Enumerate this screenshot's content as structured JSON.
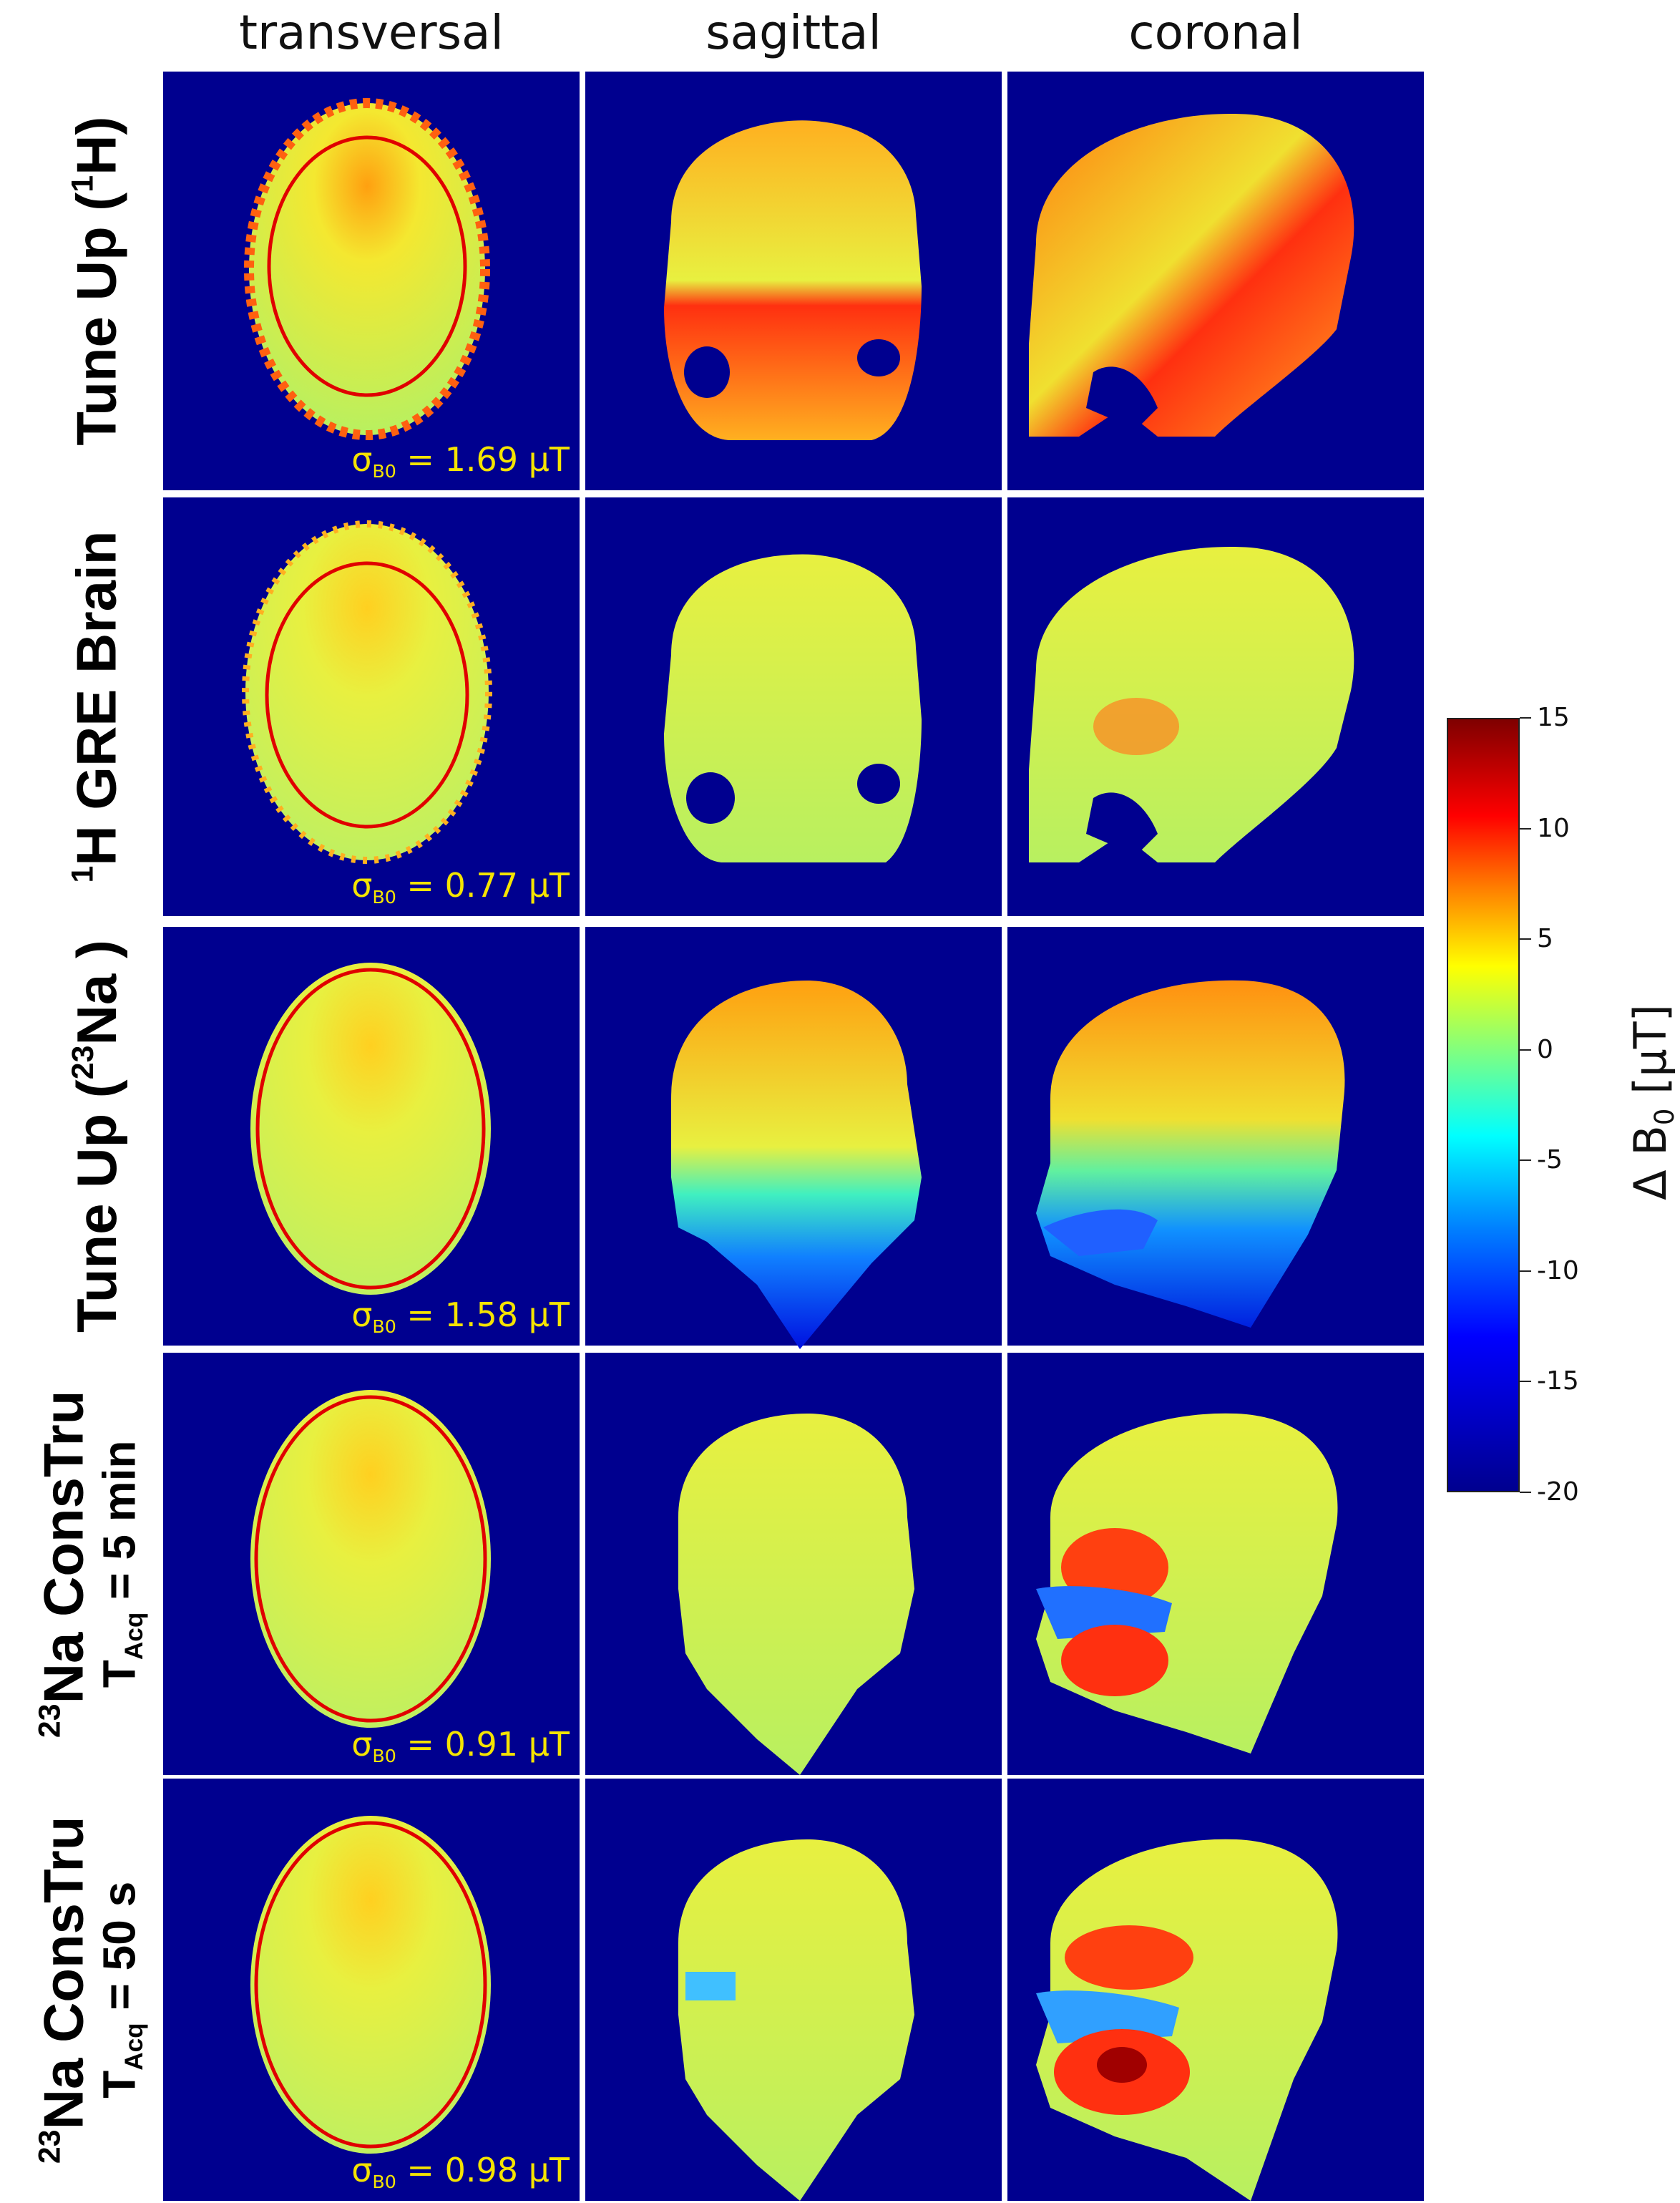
{
  "columns": [
    "transversal",
    "sagittal",
    "coronal"
  ],
  "rows": [
    {
      "label_main": "Tune Up (",
      "label_sup": "1",
      "label_tail": "H)",
      "sigma_value": "= 1.69 µT"
    },
    {
      "label_pre": "",
      "label_sup": "1",
      "label_main": "H GRE Brain",
      "sigma_value": "= 0.77 µT"
    },
    {
      "label_main": "Tune Up (",
      "label_sup": "23",
      "label_tail": "Na )",
      "sigma_value": "= 1.58 µT"
    },
    {
      "label_sup": "23",
      "label_main": "Na ConsTru",
      "label2_main": "T",
      "label2_sub": "Acq",
      "label2_tail": " = 5 min",
      "sigma_value": "= 0.91 µT"
    },
    {
      "label_sup": "23",
      "label_main": "Na ConsTru",
      "label2_main": "T",
      "label2_sub": "Acq",
      "label2_tail": " = 50 s",
      "sigma_value": "= 0.98 µT"
    }
  ],
  "sigma_symbol": "σ",
  "sigma_sub": "B0",
  "colorbar": {
    "title_main": "Δ B",
    "title_sub": "0",
    "title_unit": " [µT]",
    "ticks": [
      "15",
      "10",
      "5",
      "0",
      "-5",
      "-10",
      "-15",
      "-20"
    ],
    "range": [
      -20,
      15
    ],
    "colormap": "jet",
    "background_color": "#00008f"
  }
}
